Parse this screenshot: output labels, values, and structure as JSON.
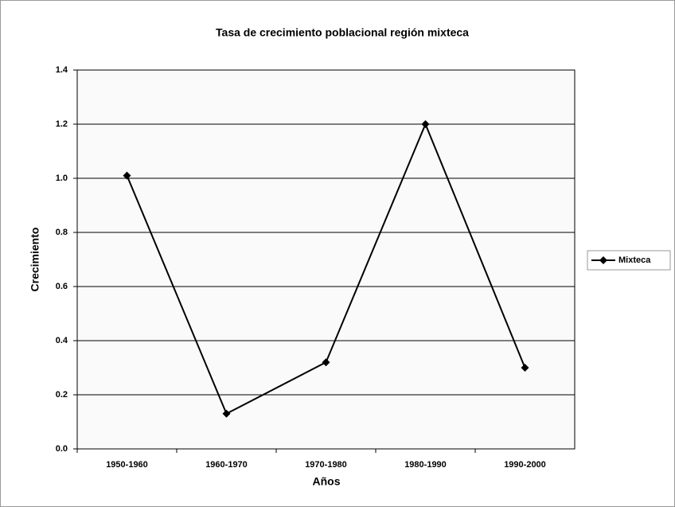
{
  "chart_data": {
    "type": "line",
    "title": "Tasa de crecimiento poblacional región mixteca",
    "x_label": "Años",
    "y_label": "Crecimiento",
    "categories": [
      "1950-1960",
      "1960-1970",
      "1970-1980",
      "1980-1990",
      "1990-2000"
    ],
    "series": [
      {
        "name": "Mixteca",
        "color": "#000000",
        "values": [
          1.01,
          0.13,
          0.32,
          1.2,
          0.3
        ]
      }
    ],
    "ylim": [
      0,
      1.4
    ],
    "yticks": [
      {
        "value": 0,
        "label": "0.0"
      },
      0.2,
      0.4,
      0.6,
      0.8,
      {
        "value": 1,
        "label": "1.0"
      },
      1.2,
      1.4
    ],
    "grid": true,
    "legend": "right"
  }
}
